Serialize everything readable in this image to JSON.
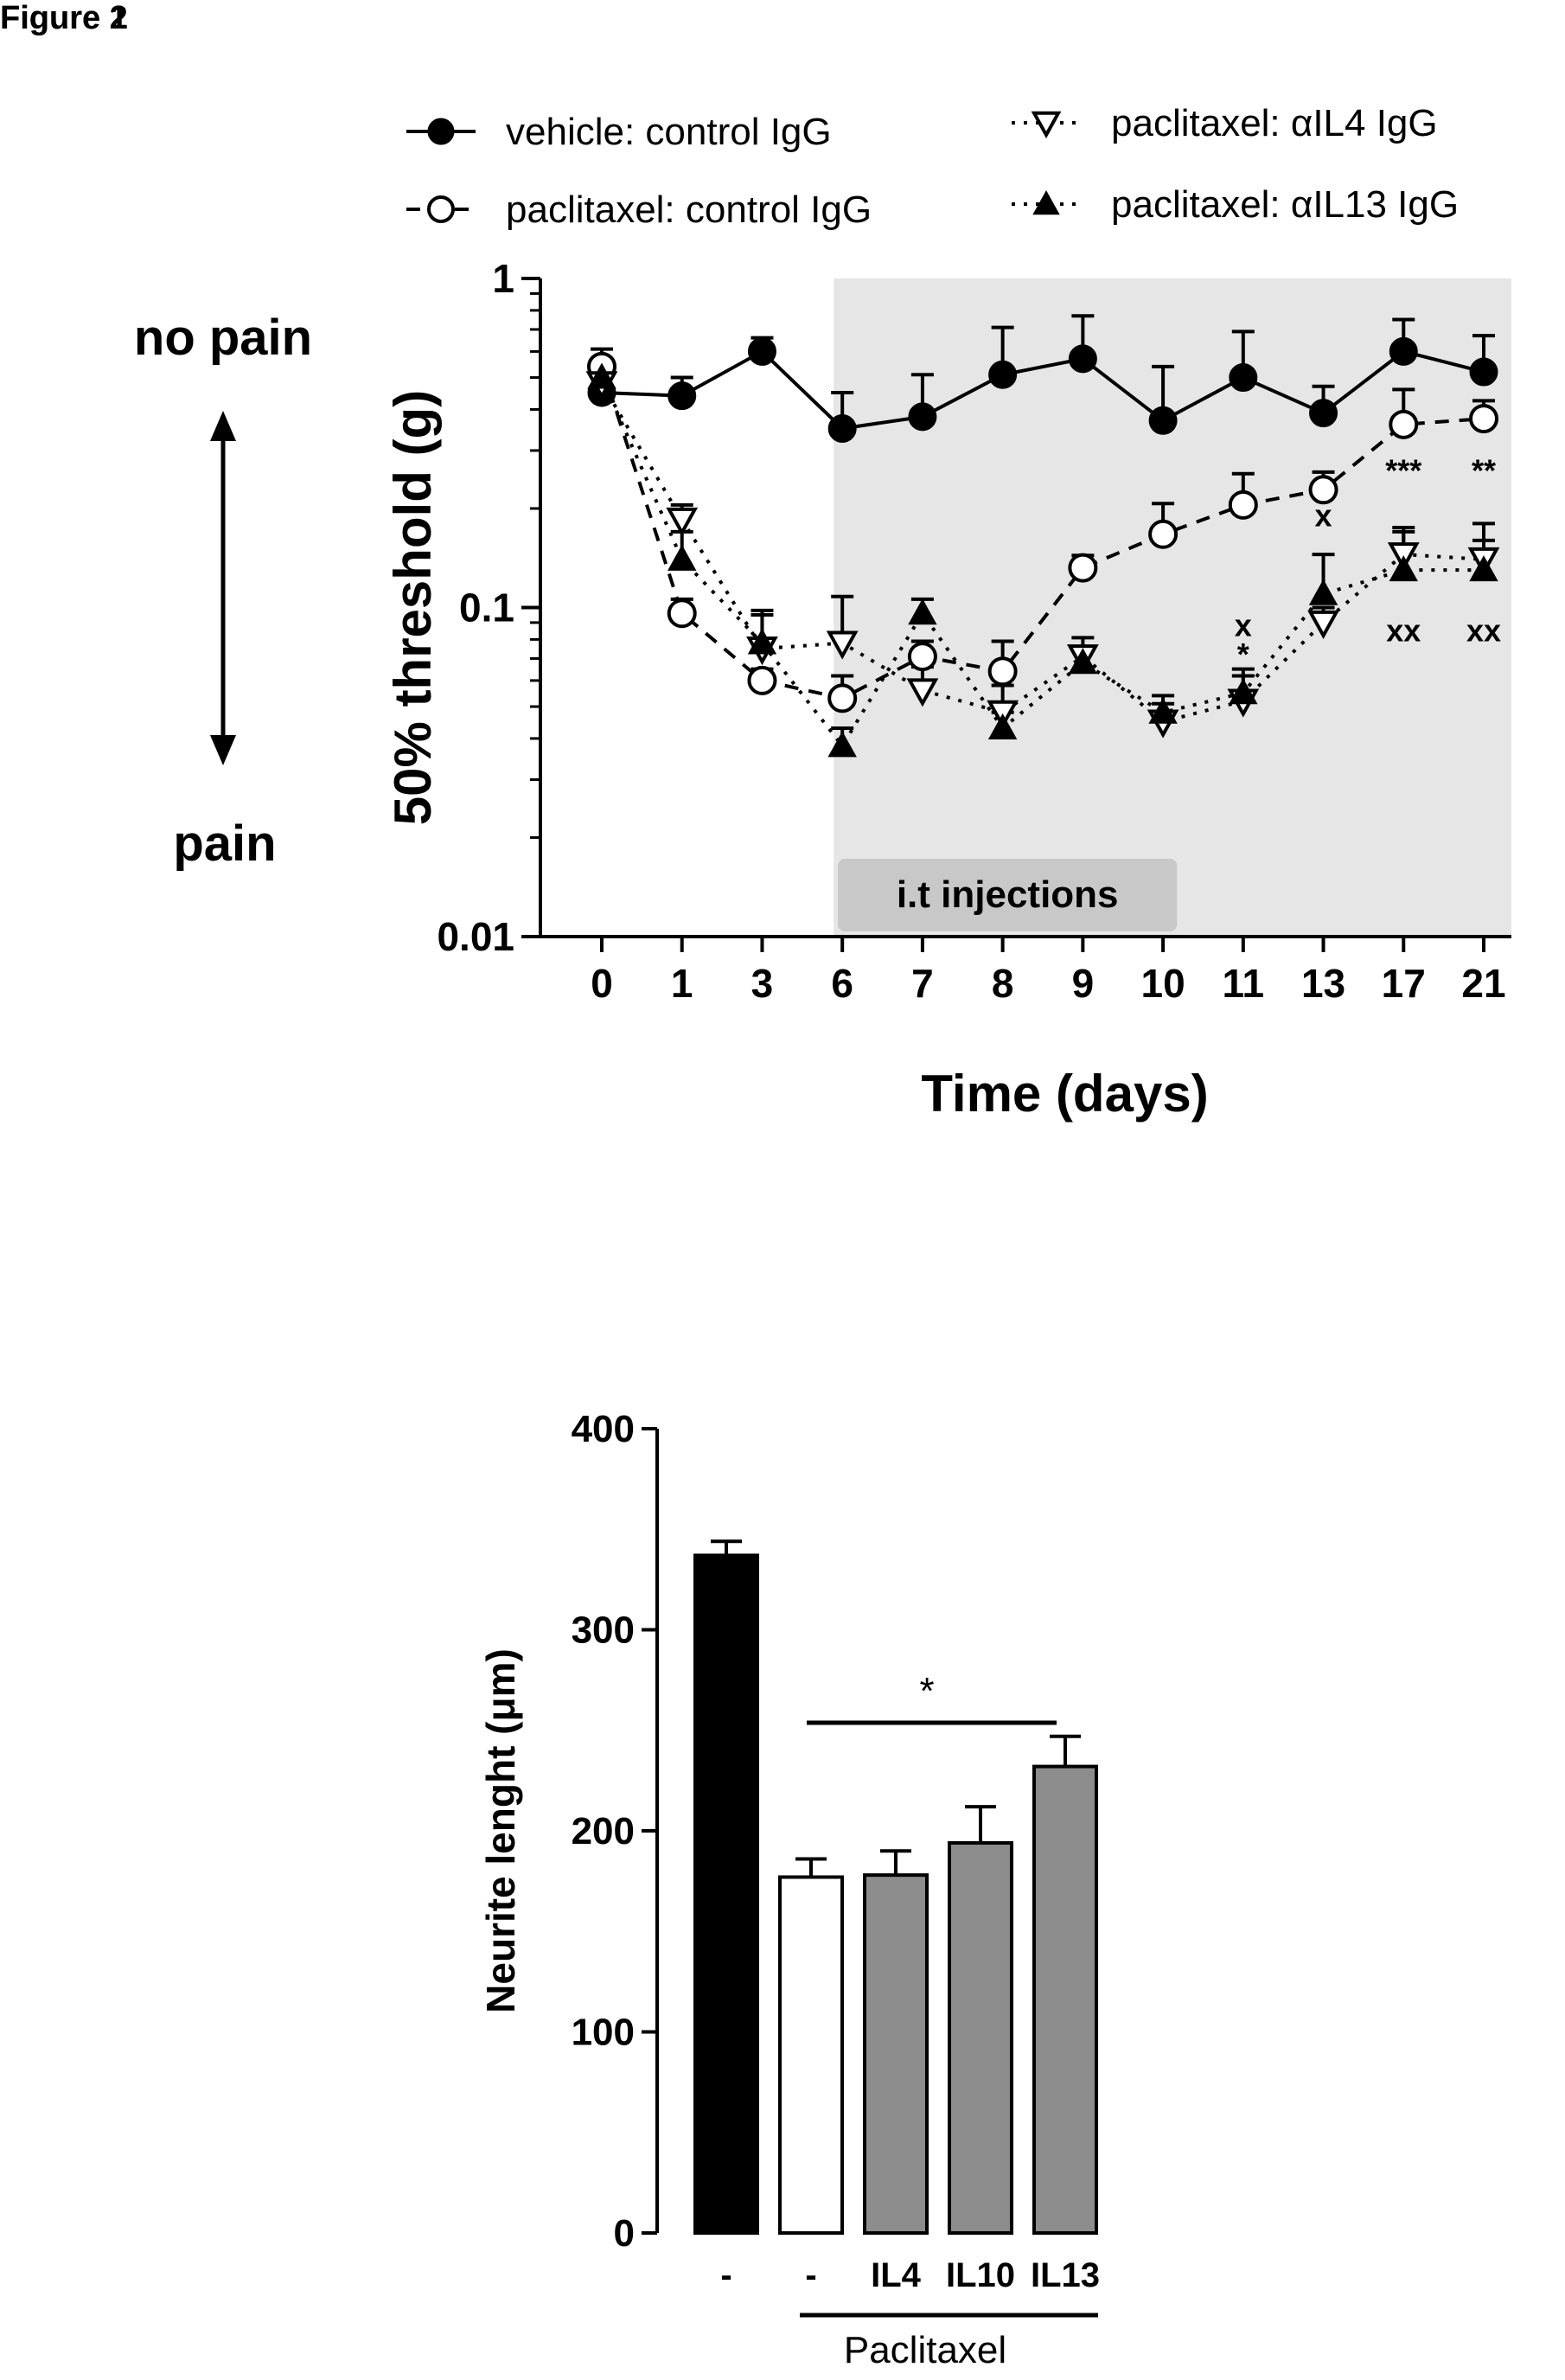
{
  "figures": {
    "fig1_label": "Figure 1",
    "fig2_label": "Figure 2"
  },
  "colors": {
    "shaded_region": "#e6e6e6",
    "injection_box": "#c8c8c8",
    "no_pain_text": "#9a9a9a",
    "bar_black": "#000000",
    "bar_white": "#ffffff",
    "bar_gray": "#8c8c8c"
  },
  "chart_data": [
    {
      "type": "line",
      "title": "",
      "xlabel": "Time (days)",
      "ylabel": "50% threshold (g)",
      "yscale": "log",
      "ylim": [
        0.01,
        1
      ],
      "yticks": [
        "0.01",
        "0.1",
        "1"
      ],
      "categories": [
        "0",
        "1",
        "3",
        "6",
        "7",
        "8",
        "9",
        "10",
        "11",
        "13",
        "17",
        "21"
      ],
      "legend_position": "top",
      "side_labels": {
        "top": "no pain",
        "bottom": "pain"
      },
      "shaded_region_label": "i.t injections",
      "shaded_region_start": "6",
      "series": [
        {
          "name": "vehicle: control IgG",
          "marker": "filled-circle",
          "line": "solid",
          "values": [
            0.45,
            0.44,
            0.6,
            0.35,
            0.38,
            0.51,
            0.57,
            0.37,
            0.5,
            0.39,
            0.6,
            0.52
          ],
          "err": [
            0.1,
            0.06,
            0.06,
            0.1,
            0.13,
            0.2,
            0.2,
            0.17,
            0.19,
            0.08,
            0.15,
            0.15
          ]
        },
        {
          "name": "paclitaxel: control IgG",
          "marker": "open-circle",
          "line": "dashed",
          "values": [
            0.54,
            0.096,
            0.06,
            0.053,
            0.071,
            0.064,
            0.132,
            0.167,
            0.205,
            0.228,
            0.36,
            0.375
          ],
          "err": [
            0.07,
            0.01,
            0.005,
            0.009,
            0.008,
            0.015,
            0.012,
            0.04,
            0.05,
            0.03,
            0.1,
            0.05
          ]
        },
        {
          "name": "paclitaxel: αIL4 IgG",
          "marker": "open-triangle-down",
          "line": "dotted",
          "values": [
            0.48,
            0.185,
            0.075,
            0.078,
            0.056,
            0.048,
            0.071,
            0.045,
            0.052,
            0.09,
            0.145,
            0.14
          ],
          "err": [
            0.05,
            0.02,
            0.02,
            0.03,
            0.01,
            0.01,
            0.01,
            0.006,
            0.01,
            0.01,
            0.03,
            0.04
          ]
        },
        {
          "name": "paclitaxel: αIL13 IgG",
          "marker": "filled-triangle-up",
          "line": "dotted",
          "values": [
            0.5,
            0.14,
            0.078,
            0.038,
            0.096,
            0.043,
            0.068,
            0.048,
            0.055,
            0.11,
            0.13,
            0.13
          ],
          "err": [
            0.05,
            0.03,
            0.02,
            0.005,
            0.01,
            0.005,
            0.008,
            0.006,
            0.01,
            0.035,
            0.04,
            0.03
          ]
        }
      ],
      "annotations": [
        {
          "text": "*",
          "x": "11",
          "y": 0.072
        },
        {
          "text": "x",
          "x": "11",
          "y": 0.088
        },
        {
          "text": "x",
          "x": "13",
          "y": 0.19
        },
        {
          "text": "***",
          "x": "17",
          "y": 0.26
        },
        {
          "text": "**",
          "x": "21",
          "y": 0.26
        },
        {
          "text": "xx",
          "x": "17",
          "y": 0.085
        },
        {
          "text": "xx",
          "x": "21",
          "y": 0.085
        }
      ]
    },
    {
      "type": "bar",
      "title": "",
      "xlabel": "",
      "ylabel": "Neurite lenght (μm)",
      "ylim": [
        0,
        400
      ],
      "yticks": [
        "0",
        "100",
        "200",
        "300",
        "400"
      ],
      "categories": [
        "-",
        "-",
        "IL4",
        "IL10",
        "IL13"
      ],
      "group_label": "Paclitaxel",
      "significance": "*",
      "values": [
        337,
        177,
        178,
        194,
        232
      ],
      "err": [
        7,
        9,
        12,
        18,
        15
      ],
      "fill": [
        "black",
        "white",
        "gray",
        "gray",
        "gray"
      ]
    }
  ]
}
